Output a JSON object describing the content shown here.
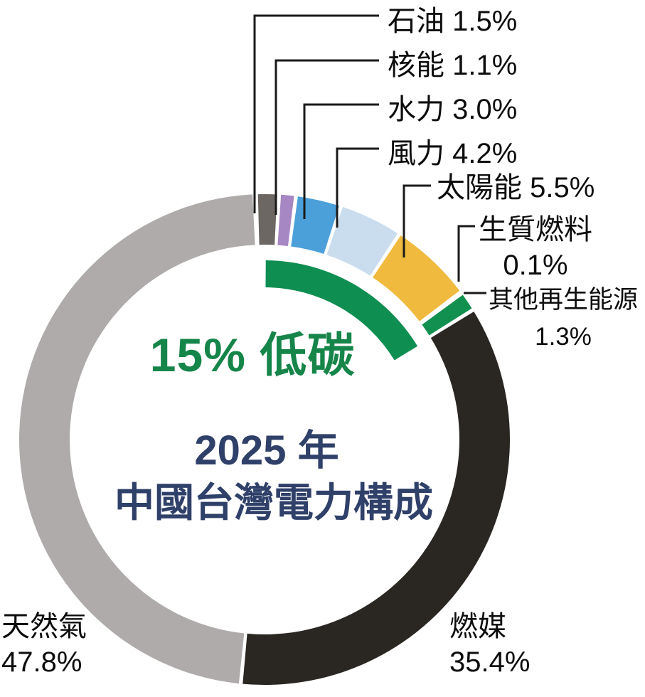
{
  "chart_data": {
    "type": "pie",
    "variant": "donut",
    "title": "2025 年 中國台灣電力構成",
    "center_annotation": "15% 低碳",
    "categories": [
      "石油",
      "核能",
      "水力",
      "風力",
      "太陽能",
      "生質燃料",
      "其他再生能源",
      "燃媒",
      "天然氣"
    ],
    "values": [
      1.5,
      1.1,
      3.0,
      4.2,
      5.5,
      0.1,
      1.3,
      35.4,
      47.8
    ],
    "slices": [
      {
        "id": "oil",
        "name": "石油",
        "value": 1.5,
        "color": "#6c6762"
      },
      {
        "id": "nuclear",
        "name": "核能",
        "value": 1.1,
        "color": "#a687c3"
      },
      {
        "id": "hydro",
        "name": "水力",
        "value": 3.0,
        "color": "#4ba0da"
      },
      {
        "id": "wind",
        "name": "風力",
        "value": 4.2,
        "color": "#c9ddef"
      },
      {
        "id": "solar",
        "name": "太陽能",
        "value": 5.5,
        "color": "#f0ba3e"
      },
      {
        "id": "biofuel",
        "name": "生質燃料",
        "value": 0.1,
        "color": "#ffffff"
      },
      {
        "id": "other-renewables",
        "name": "其他再生能源",
        "value": 1.3,
        "color": "#12904f"
      },
      {
        "id": "coal",
        "name": "燃媒",
        "value": 35.4,
        "color": "#2a2622"
      },
      {
        "id": "natural-gas",
        "name": "天然氣",
        "value": 47.8,
        "color": "#aeabaa"
      }
    ],
    "low_carbon_arc": {
      "label": "15% 低碳",
      "share_percent": 15,
      "color": "#0f8e52"
    },
    "legend_position": "callouts",
    "grid": false
  },
  "callouts": {
    "oil": {
      "label": "石油 1.5%"
    },
    "nuclear": {
      "label": "核能 1.1%"
    },
    "hydro": {
      "label": "水力 3.0%"
    },
    "wind": {
      "label": "風力 4.2%"
    },
    "solar": {
      "label": "太陽能 5.5%"
    },
    "biofuel": {
      "name": "生質燃料",
      "pct": "0.1%"
    },
    "other_renewables": {
      "name": "其他再生能源",
      "pct": "1.3%"
    },
    "natural_gas": {
      "name": "天然氣",
      "pct": "47.8%"
    },
    "coal": {
      "name": "燃媒",
      "pct": "35.4%"
    }
  },
  "center": {
    "low_carbon": "15% 低碳",
    "year": "2025 年",
    "title": "中國台灣電力構成"
  },
  "colors": {
    "low_carbon_green": "#0f8e52",
    "low_carbon_text_green": "#15854a",
    "navy": "#2f4069",
    "label_black": "#0d0d0d",
    "leader_line": "#1a1a1a",
    "background": "#ffffff"
  }
}
